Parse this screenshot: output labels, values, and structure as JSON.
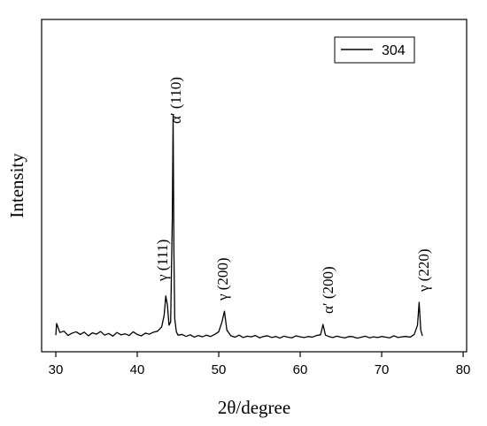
{
  "chart_data": {
    "type": "line",
    "xlabel": "2θ/degree",
    "ylabel": "Intensity",
    "xlim": [
      28.26,
      80.43
    ],
    "xticks": [
      30,
      40,
      50,
      60,
      70,
      80
    ],
    "ylim": [
      0,
      100
    ],
    "legend": "upper right",
    "annotations": [
      "γ (111)",
      "α′ (110)",
      "γ (200)",
      "α′ (200)",
      "γ (220)"
    ],
    "x": [
      30,
      30.1,
      30.5,
      31,
      31.5,
      32,
      32.5,
      33,
      33.5,
      34,
      34.5,
      35,
      35.5,
      36,
      36.5,
      37,
      37.5,
      38,
      38.5,
      39,
      39.5,
      40,
      40.5,
      41,
      41.5,
      42,
      42.5,
      43,
      43.3,
      43.5,
      43.7,
      43.9,
      44.1,
      44.3,
      44.4,
      44.5,
      44.6,
      44.8,
      45,
      45.5,
      46,
      46.5,
      47,
      47.5,
      48,
      48.5,
      49,
      49.5,
      50,
      50.4,
      50.7,
      51,
      51.5,
      52,
      52.5,
      53,
      53.5,
      54,
      54.5,
      55,
      55.5,
      56,
      56.5,
      57,
      57.5,
      58,
      58.5,
      59,
      59.5,
      60,
      60.5,
      61,
      61.5,
      62,
      62.5,
      62.8,
      63.1,
      63.5,
      64,
      64.5,
      65,
      65.5,
      66,
      66.5,
      67,
      67.5,
      68,
      68.5,
      69,
      69.5,
      70,
      70.5,
      71,
      71.5,
      72,
      72.5,
      73,
      73.5,
      74,
      74.4,
      74.6,
      74.8,
      75
    ],
    "series": [
      {
        "name": "304",
        "color": "#000000",
        "values": [
          5,
          8.5,
          5.8,
          6.2,
          4.9,
          5.6,
          6,
          5.2,
          5.9,
          4.8,
          5.7,
          5.3,
          6.1,
          5,
          5.5,
          4.7,
          5.8,
          5.1,
          5.4,
          4.9,
          6,
          5.2,
          4.8,
          5.6,
          5.3,
          5.9,
          6.2,
          7.5,
          11,
          16.8,
          14,
          8,
          9,
          40,
          71.3,
          30,
          10,
          6,
          5,
          5.2,
          4.6,
          5.1,
          4.4,
          4.9,
          4.5,
          5,
          4.6,
          5.2,
          6,
          9,
          12.2,
          6.5,
          4.8,
          4.4,
          5,
          4.3,
          4.7,
          4.5,
          4.9,
          4.2,
          4.6,
          4.8,
          4.3,
          4.6,
          4.1,
          4.7,
          4.4,
          4.2,
          4.8,
          4.5,
          4.3,
          4.6,
          4.4,
          4.9,
          5.1,
          8.2,
          5,
          4.6,
          4.3,
          4.7,
          4.4,
          4.2,
          4.6,
          4.5,
          4.1,
          4.4,
          4.7,
          4.2,
          4.5,
          4.3,
          4.6,
          4.4,
          4.2,
          4.8,
          4.3,
          4.5,
          4.6,
          4.4,
          5.2,
          8,
          14.9,
          6.5,
          4.8
        ]
      }
    ]
  }
}
